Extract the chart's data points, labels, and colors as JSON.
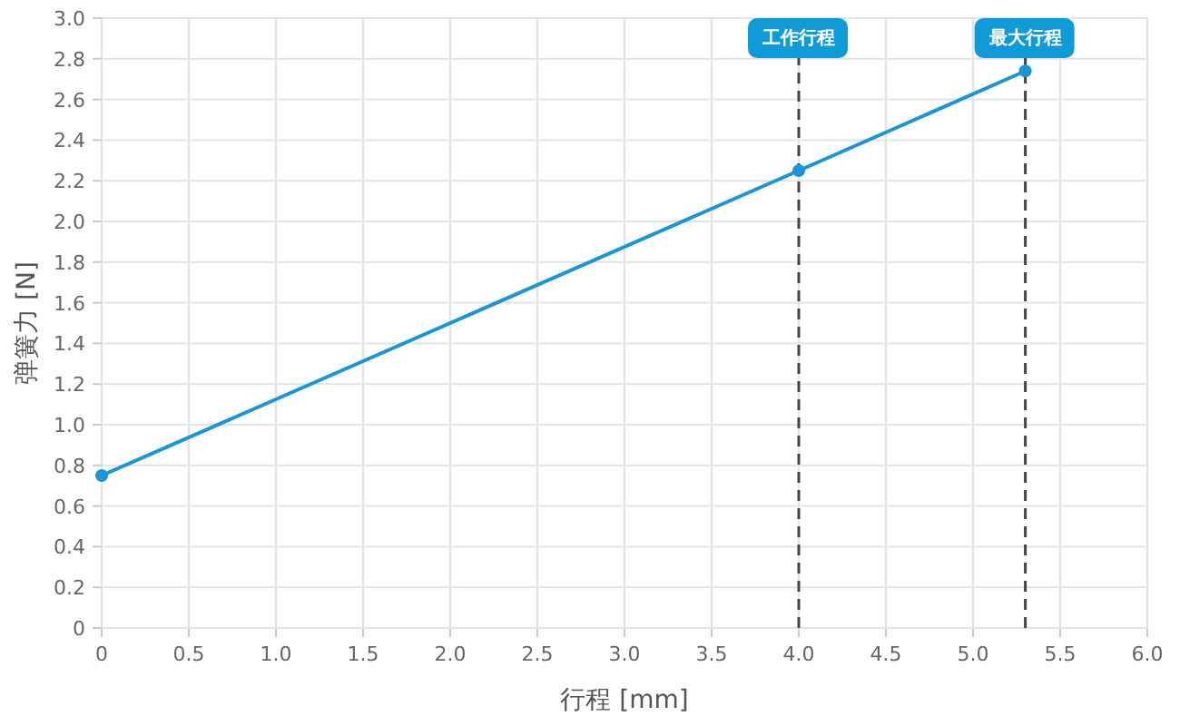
{
  "chart_data": {
    "type": "line",
    "xlabel": "行程 [mm]",
    "ylabel": "弹簧力 [N]",
    "x": [
      0,
      4,
      5.3
    ],
    "series": [
      {
        "color": "#1a96d4",
        "values": [
          0.75,
          2.25,
          2.74
        ]
      }
    ],
    "xlim": [
      0,
      6
    ],
    "xticks": [
      0,
      0.5,
      {
        "value": 1,
        "label": "1.0"
      },
      1.5,
      {
        "value": 2,
        "label": "2.0"
      },
      2.5,
      {
        "value": 3,
        "label": "3.0"
      },
      3.5,
      {
        "value": 4,
        "label": "4.0"
      },
      4.5,
      {
        "value": 5,
        "label": "5.0"
      },
      5.5,
      {
        "value": 6,
        "label": "6.0"
      }
    ],
    "ylim": [
      0,
      3
    ],
    "yticks": [
      0,
      0.2,
      0.4,
      0.6,
      0.8,
      {
        "value": 1,
        "label": "1.0"
      },
      1.2,
      1.4,
      1.6,
      1.8,
      {
        "value": 2,
        "label": "2.0"
      },
      2.2,
      2.4,
      2.6,
      2.8,
      {
        "value": 3,
        "label": "3.0"
      }
    ],
    "ref_lines": [
      {
        "axis": "x",
        "value": 4,
        "label": "工作行程",
        "color": "#444444",
        "line_style": "dashed"
      },
      {
        "axis": "x",
        "value": 5.3,
        "label": "最大行程",
        "color": "#444444",
        "line_style": "dashed"
      }
    ],
    "grid": true,
    "marker": "circle",
    "line_style": "solid"
  }
}
